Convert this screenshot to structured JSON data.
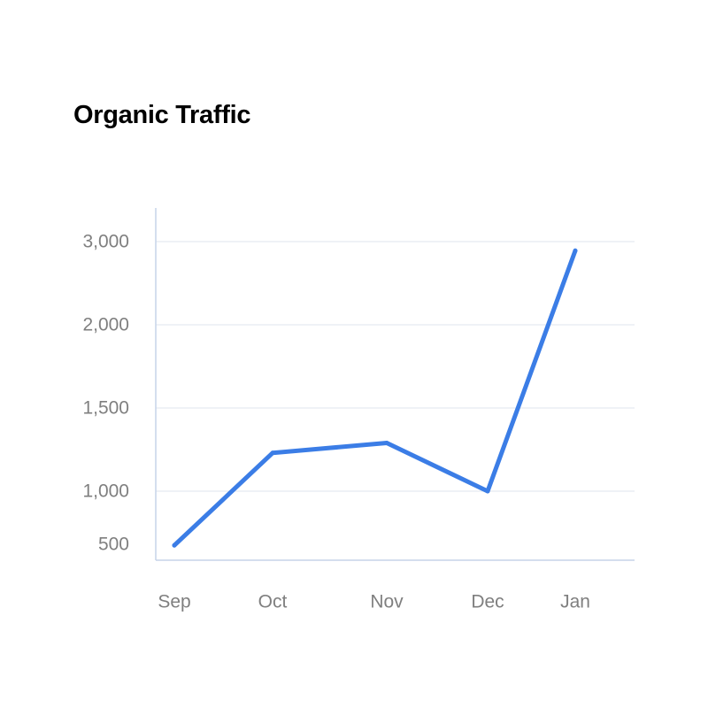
{
  "chart_data": {
    "type": "line",
    "title": "Organic Traffic",
    "xlabel": "",
    "ylabel": "",
    "categories": [
      "Sep",
      "Oct",
      "Nov",
      "Dec",
      "Jan"
    ],
    "series": [
      {
        "values": [
          490,
          1230,
          1290,
          1000,
          2890
        ]
      }
    ],
    "y_ticks": [
      {
        "value": 500,
        "label": "500"
      },
      {
        "value": 1000,
        "label": "1,000"
      },
      {
        "value": 1500,
        "label": "1,500"
      },
      {
        "value": 2000,
        "label": "2,000"
      },
      {
        "value": 3000,
        "label": "3,000"
      }
    ],
    "ylim": [
      450,
      3250
    ],
    "grid": true,
    "line_color": "#3b7de6",
    "grid_color": "#dfe6ee",
    "axis_color": "#c5d3e8",
    "tick_color": "#7f7f7f"
  }
}
